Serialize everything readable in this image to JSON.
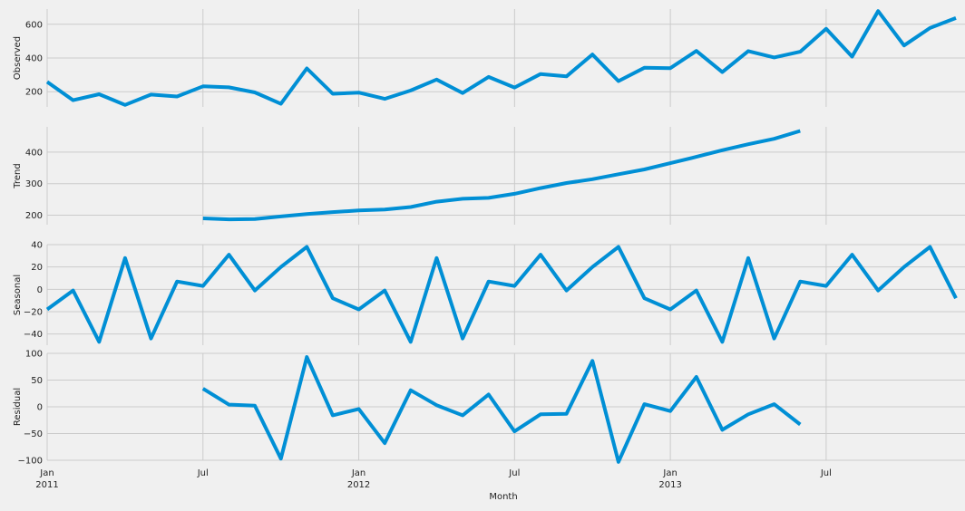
{
  "chart_data": {
    "type": "line",
    "xlabel": "Month",
    "grid": true,
    "color": "#008fd5",
    "x_ticks": [
      {
        "month_index": 0,
        "line1": "Jan",
        "line2": "2011"
      },
      {
        "month_index": 6,
        "line1": "Jul",
        "line2": ""
      },
      {
        "month_index": 12,
        "line1": "Jan",
        "line2": "2012"
      },
      {
        "month_index": 18,
        "line1": "Jul",
        "line2": ""
      },
      {
        "month_index": 24,
        "line1": "Jan",
        "line2": "2013"
      },
      {
        "month_index": 30,
        "line1": "Jul",
        "line2": ""
      }
    ],
    "x_start": "2011-01",
    "x_range": [
      "2011-01",
      "2014-01"
    ],
    "panels": [
      {
        "name": "observed",
        "ylabel": "Observed",
        "ylim": [
          110,
          690
        ],
        "yticks": [
          200,
          400,
          600
        ],
        "start": "2011-01",
        "values": [
          258,
          150,
          185,
          122,
          183,
          172,
          232,
          226,
          196,
          128,
          338,
          188,
          195,
          158,
          207,
          272,
          192,
          288,
          225,
          305,
          291,
          421,
          263,
          342,
          340,
          442,
          316,
          441,
          403,
          437,
          573,
          408,
          678,
          474,
          578,
          637
        ]
      },
      {
        "name": "trend",
        "ylabel": "Trend",
        "ylim": [
          170,
          480
        ],
        "yticks": [
          200,
          300,
          400
        ],
        "start": "2011-07",
        "values": [
          190,
          187,
          188,
          196,
          204,
          210,
          215,
          218,
          226,
          243,
          252,
          255,
          268,
          286,
          302,
          314,
          330,
          345,
          365,
          385,
          406,
          425,
          442,
          467
        ]
      },
      {
        "name": "seasonal",
        "ylabel": "Seasonal",
        "ylim": [
          -50,
          40
        ],
        "yticks": [
          -40,
          -20,
          0,
          20,
          40
        ],
        "start": "2011-01",
        "values": [
          -18,
          -1,
          -47,
          28,
          -44,
          7,
          3,
          31,
          -1,
          20,
          38,
          -8,
          -18,
          -1,
          -47,
          28,
          -44,
          7,
          3,
          31,
          -1,
          20,
          38,
          -8,
          -18,
          -1,
          -47,
          28,
          -44,
          7,
          3,
          31,
          -1,
          20,
          38,
          -8
        ]
      },
      {
        "name": "residual",
        "ylabel": "Residual",
        "ylim": [
          -100,
          100
        ],
        "yticks": [
          -100,
          -50,
          0,
          50,
          100
        ],
        "start": "2011-07",
        "values": [
          34,
          4,
          2,
          -97,
          93,
          -16,
          -4,
          -68,
          31,
          3,
          -16,
          23,
          -46,
          -14,
          -13,
          86,
          -103,
          5,
          -8,
          56,
          -43,
          -14,
          5,
          -33
        ]
      }
    ]
  }
}
